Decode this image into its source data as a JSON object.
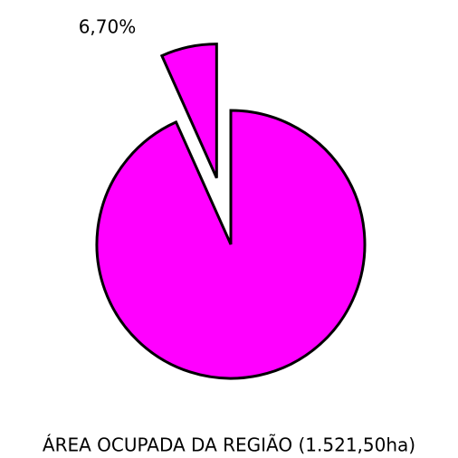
{
  "chart_data": {
    "type": "pie",
    "title": "ÁREA OCUPADA DA REGIÃO (1.521,50ha)",
    "values": [
      6.7,
      93.3
    ],
    "value_labels": [
      "6,70%",
      null
    ],
    "colors": [
      "#ff00ff",
      "#ff00ff"
    ],
    "explode": [
      true,
      false
    ]
  }
}
